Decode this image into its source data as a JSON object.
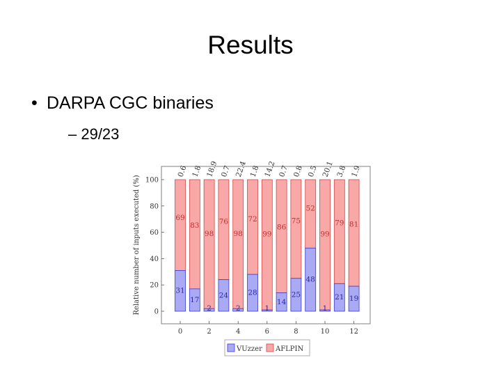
{
  "slide": {
    "title": "Results",
    "bullet_symbol": "•",
    "bullet_text": "DARPA CGC binaries",
    "sub_bullet_text": "– 29/23"
  },
  "colors": {
    "vuzzer_fill": "#a9aaf3",
    "vuzzer_edge": "#3a3ad0",
    "aflpin_fill": "#f9a8a8",
    "aflpin_edge": "#d04848",
    "frame": "#808080"
  },
  "chart_data": {
    "type": "bar",
    "stacked": true,
    "ylabel": "Relative number of inputs executed (%)",
    "ylim": [
      0,
      100
    ],
    "yticks": [
      "0",
      "20",
      "40",
      "60",
      "80",
      "100"
    ],
    "xticks": [
      "0",
      "2",
      "4",
      "6",
      "8",
      "10",
      "12"
    ],
    "categories": [
      0,
      1,
      2,
      3,
      4,
      5,
      6,
      7,
      8,
      9,
      10,
      11,
      12
    ],
    "series": [
      {
        "name": "VUzzer",
        "values": [
          31,
          17,
          2,
          24,
          2,
          28,
          1,
          14,
          25,
          48,
          1,
          21,
          19
        ]
      },
      {
        "name": "AFLPIN",
        "values": [
          69,
          83,
          98,
          76,
          98,
          72,
          99,
          86,
          75,
          52,
          99,
          79,
          81
        ]
      }
    ],
    "top_labels": [
      "0.6",
      "1.8",
      "18.9",
      "0.7",
      "22.4",
      "1.8",
      "14.2",
      "0.7",
      "0.8",
      "0.5",
      "20.1",
      "3.8",
      "1.9"
    ],
    "legend_position": "bottom"
  }
}
